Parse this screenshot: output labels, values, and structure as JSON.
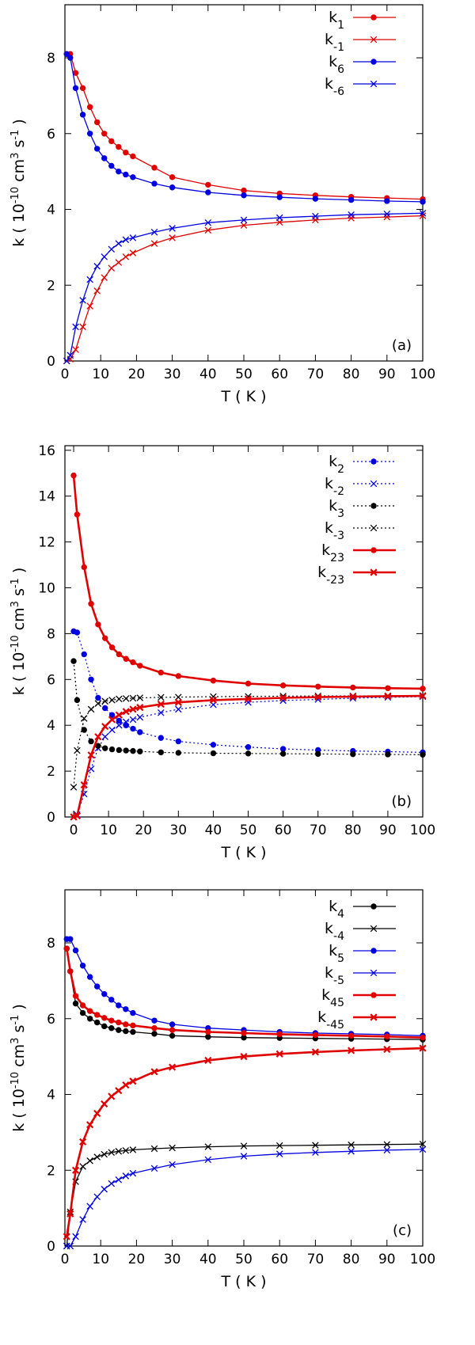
{
  "chart_data": [
    {
      "panel": "(a)",
      "type": "line",
      "xlabel": "T ( K )",
      "ylabel": "k ( 10^-10 cm^3 s^-1 )",
      "xlim": [
        0,
        100
      ],
      "ylim": [
        0,
        9.4
      ],
      "xticks": [
        0,
        10,
        20,
        30,
        40,
        50,
        60,
        70,
        80,
        90,
        100
      ],
      "yticks": [
        0,
        2,
        4,
        6,
        8
      ],
      "grid": false,
      "legend_position": "top-right",
      "x": [
        0.5,
        1.5,
        3,
        5,
        7,
        9,
        11,
        13,
        15,
        17,
        19,
        25,
        30,
        40,
        50,
        60,
        70,
        80,
        90,
        100
      ],
      "series": [
        {
          "name": "k_1",
          "name_main": "k",
          "name_sub": "1",
          "color": "#e00000",
          "marker": "dot",
          "line": "solid",
          "values": [
            8.1,
            8.1,
            7.6,
            7.2,
            6.7,
            6.3,
            6.0,
            5.8,
            5.65,
            5.5,
            5.4,
            5.1,
            4.85,
            4.65,
            4.5,
            4.42,
            4.37,
            4.33,
            4.3,
            4.27
          ]
        },
        {
          "name": "k_-1",
          "name_main": "k",
          "name_sub": "-1",
          "color": "#e00000",
          "marker": "cross",
          "line": "solid",
          "values": [
            0.0,
            0.05,
            0.3,
            0.9,
            1.45,
            1.85,
            2.2,
            2.45,
            2.6,
            2.75,
            2.85,
            3.1,
            3.25,
            3.45,
            3.58,
            3.66,
            3.72,
            3.77,
            3.8,
            3.83
          ]
        },
        {
          "name": "k_6",
          "name_main": "k",
          "name_sub": "6",
          "color": "#0000e0",
          "marker": "dot",
          "line": "solid",
          "values": [
            8.1,
            8.0,
            7.2,
            6.5,
            6.0,
            5.6,
            5.35,
            5.15,
            5.0,
            4.92,
            4.85,
            4.68,
            4.58,
            4.45,
            4.37,
            4.32,
            4.28,
            4.25,
            4.22,
            4.2
          ]
        },
        {
          "name": "k_-6",
          "name_main": "k",
          "name_sub": "-6",
          "color": "#0000e0",
          "marker": "cross",
          "line": "solid",
          "values": [
            0.0,
            0.15,
            0.9,
            1.6,
            2.15,
            2.5,
            2.75,
            2.95,
            3.1,
            3.2,
            3.25,
            3.4,
            3.5,
            3.65,
            3.72,
            3.78,
            3.82,
            3.86,
            3.88,
            3.9
          ]
        }
      ]
    },
    {
      "panel": "(b)",
      "type": "line",
      "xlabel": "T ( K )",
      "ylabel": "k ( 10^-10 cm^3 s^-1 )",
      "xlim": [
        -2.5,
        100
      ],
      "ylim": [
        0,
        16.2
      ],
      "xticks": [
        0,
        10,
        20,
        30,
        40,
        50,
        60,
        70,
        80,
        90,
        100
      ],
      "yticks": [
        0,
        2,
        4,
        6,
        8,
        10,
        12,
        14,
        16
      ],
      "grid": false,
      "legend_position": "top-right",
      "x": [
        0,
        1,
        3,
        5,
        7,
        9,
        11,
        13,
        15,
        17,
        19,
        25,
        30,
        40,
        50,
        60,
        70,
        80,
        90,
        100
      ],
      "series": [
        {
          "name": "k_2",
          "name_main": "k",
          "name_sub": "2",
          "color": "#0000e0",
          "marker": "dot",
          "line": "dotted",
          "values": [
            8.1,
            8.05,
            7.1,
            6.0,
            5.2,
            4.75,
            4.45,
            4.2,
            4.0,
            3.85,
            3.7,
            3.45,
            3.3,
            3.15,
            3.05,
            2.97,
            2.92,
            2.88,
            2.85,
            2.82
          ]
        },
        {
          "name": "k_-2",
          "name_main": "k",
          "name_sub": "-2",
          "color": "#0000e0",
          "marker": "cross",
          "line": "dotted",
          "values": [
            0.0,
            0.1,
            1.0,
            2.1,
            3.0,
            3.5,
            3.8,
            4.0,
            4.15,
            4.25,
            4.35,
            4.55,
            4.7,
            4.9,
            5.0,
            5.08,
            5.13,
            5.18,
            5.22,
            5.25
          ]
        },
        {
          "name": "k_3",
          "name_main": "k",
          "name_sub": "3",
          "color": "#000000",
          "marker": "dot",
          "line": "dotted",
          "values": [
            6.8,
            5.1,
            3.8,
            3.3,
            3.1,
            3.0,
            2.95,
            2.92,
            2.9,
            2.88,
            2.86,
            2.82,
            2.8,
            2.78,
            2.77,
            2.76,
            2.75,
            2.74,
            2.73,
            2.72
          ]
        },
        {
          "name": "k_-3",
          "name_main": "k",
          "name_sub": "-3",
          "color": "#000000",
          "marker": "cross",
          "line": "dotted",
          "values": [
            1.3,
            2.9,
            4.3,
            4.7,
            4.95,
            5.05,
            5.1,
            5.15,
            5.17,
            5.18,
            5.2,
            5.22,
            5.23,
            5.25,
            5.26,
            5.27,
            5.28,
            5.28,
            5.29,
            5.3
          ]
        },
        {
          "name": "k_23",
          "name_main": "k",
          "name_sub": "23",
          "color": "#e00000",
          "marker": "dot",
          "line": "solid-thick",
          "values": [
            14.9,
            13.2,
            10.9,
            9.3,
            8.4,
            7.8,
            7.4,
            7.1,
            6.9,
            6.75,
            6.6,
            6.3,
            6.15,
            5.95,
            5.82,
            5.74,
            5.69,
            5.65,
            5.62,
            5.6
          ]
        },
        {
          "name": "k_-23",
          "name_main": "k",
          "name_sub": "-23",
          "color": "#e00000",
          "marker": "cross",
          "line": "solid-thick",
          "values": [
            0.0,
            0.05,
            1.4,
            2.7,
            3.5,
            3.95,
            4.25,
            4.45,
            4.6,
            4.7,
            4.78,
            4.92,
            5.0,
            5.1,
            5.15,
            5.2,
            5.23,
            5.25,
            5.27,
            5.28
          ]
        }
      ]
    },
    {
      "panel": "(c)",
      "type": "line",
      "xlabel": "T ( K )",
      "ylabel": "k ( 10^-10 cm^3 s^-1 )",
      "xlim": [
        0,
        100
      ],
      "ylim": [
        0,
        9.4
      ],
      "xticks": [
        0,
        10,
        20,
        30,
        40,
        50,
        60,
        70,
        80,
        90,
        100
      ],
      "yticks": [
        0,
        2,
        4,
        6,
        8
      ],
      "grid": false,
      "legend_position": "top-right",
      "x": [
        0.5,
        1.5,
        3,
        5,
        7,
        9,
        11,
        13,
        15,
        17,
        19,
        25,
        30,
        40,
        50,
        60,
        70,
        80,
        90,
        100
      ],
      "series": [
        {
          "name": "k_4",
          "name_main": "k",
          "name_sub": "4",
          "color": "#000000",
          "marker": "dot",
          "line": "solid",
          "values": [
            7.85,
            7.25,
            6.4,
            6.15,
            6.0,
            5.9,
            5.8,
            5.75,
            5.7,
            5.67,
            5.65,
            5.6,
            5.55,
            5.52,
            5.5,
            5.49,
            5.48,
            5.47,
            5.46,
            5.45
          ]
        },
        {
          "name": "k_-4",
          "name_main": "k",
          "name_sub": "-4",
          "color": "#000000",
          "marker": "cross",
          "line": "solid",
          "values": [
            0.0,
            0.9,
            1.7,
            2.1,
            2.25,
            2.35,
            2.42,
            2.47,
            2.5,
            2.52,
            2.54,
            2.57,
            2.59,
            2.62,
            2.64,
            2.65,
            2.66,
            2.67,
            2.68,
            2.69
          ]
        },
        {
          "name": "k_5",
          "name_main": "k",
          "name_sub": "5",
          "color": "#0000e0",
          "marker": "dot",
          "line": "solid",
          "values": [
            8.1,
            8.1,
            7.8,
            7.4,
            7.1,
            6.85,
            6.65,
            6.5,
            6.35,
            6.25,
            6.15,
            5.95,
            5.85,
            5.75,
            5.7,
            5.65,
            5.62,
            5.6,
            5.58,
            5.55
          ]
        },
        {
          "name": "k_-5",
          "name_main": "k",
          "name_sub": "-5",
          "color": "#0000e0",
          "marker": "cross",
          "line": "solid",
          "values": [
            0.0,
            0.0,
            0.25,
            0.7,
            1.05,
            1.3,
            1.5,
            1.65,
            1.75,
            1.85,
            1.92,
            2.05,
            2.15,
            2.28,
            2.37,
            2.43,
            2.47,
            2.5,
            2.53,
            2.55
          ]
        },
        {
          "name": "k_45",
          "name_main": "k",
          "name_sub": "45",
          "color": "#e00000",
          "marker": "dot",
          "line": "solid-thick",
          "values": [
            7.85,
            7.25,
            6.6,
            6.35,
            6.2,
            6.1,
            6.02,
            5.95,
            5.9,
            5.85,
            5.82,
            5.75,
            5.7,
            5.65,
            5.62,
            5.59,
            5.57,
            5.55,
            5.53,
            5.5
          ]
        },
        {
          "name": "k_-45",
          "name_main": "k",
          "name_sub": "-45",
          "color": "#e00000",
          "marker": "cross",
          "line": "solid-thick",
          "values": [
            0.25,
            0.85,
            2.0,
            2.75,
            3.2,
            3.5,
            3.75,
            3.95,
            4.1,
            4.25,
            4.35,
            4.6,
            4.72,
            4.9,
            5.0,
            5.07,
            5.12,
            5.16,
            5.19,
            5.22
          ]
        }
      ]
    }
  ]
}
